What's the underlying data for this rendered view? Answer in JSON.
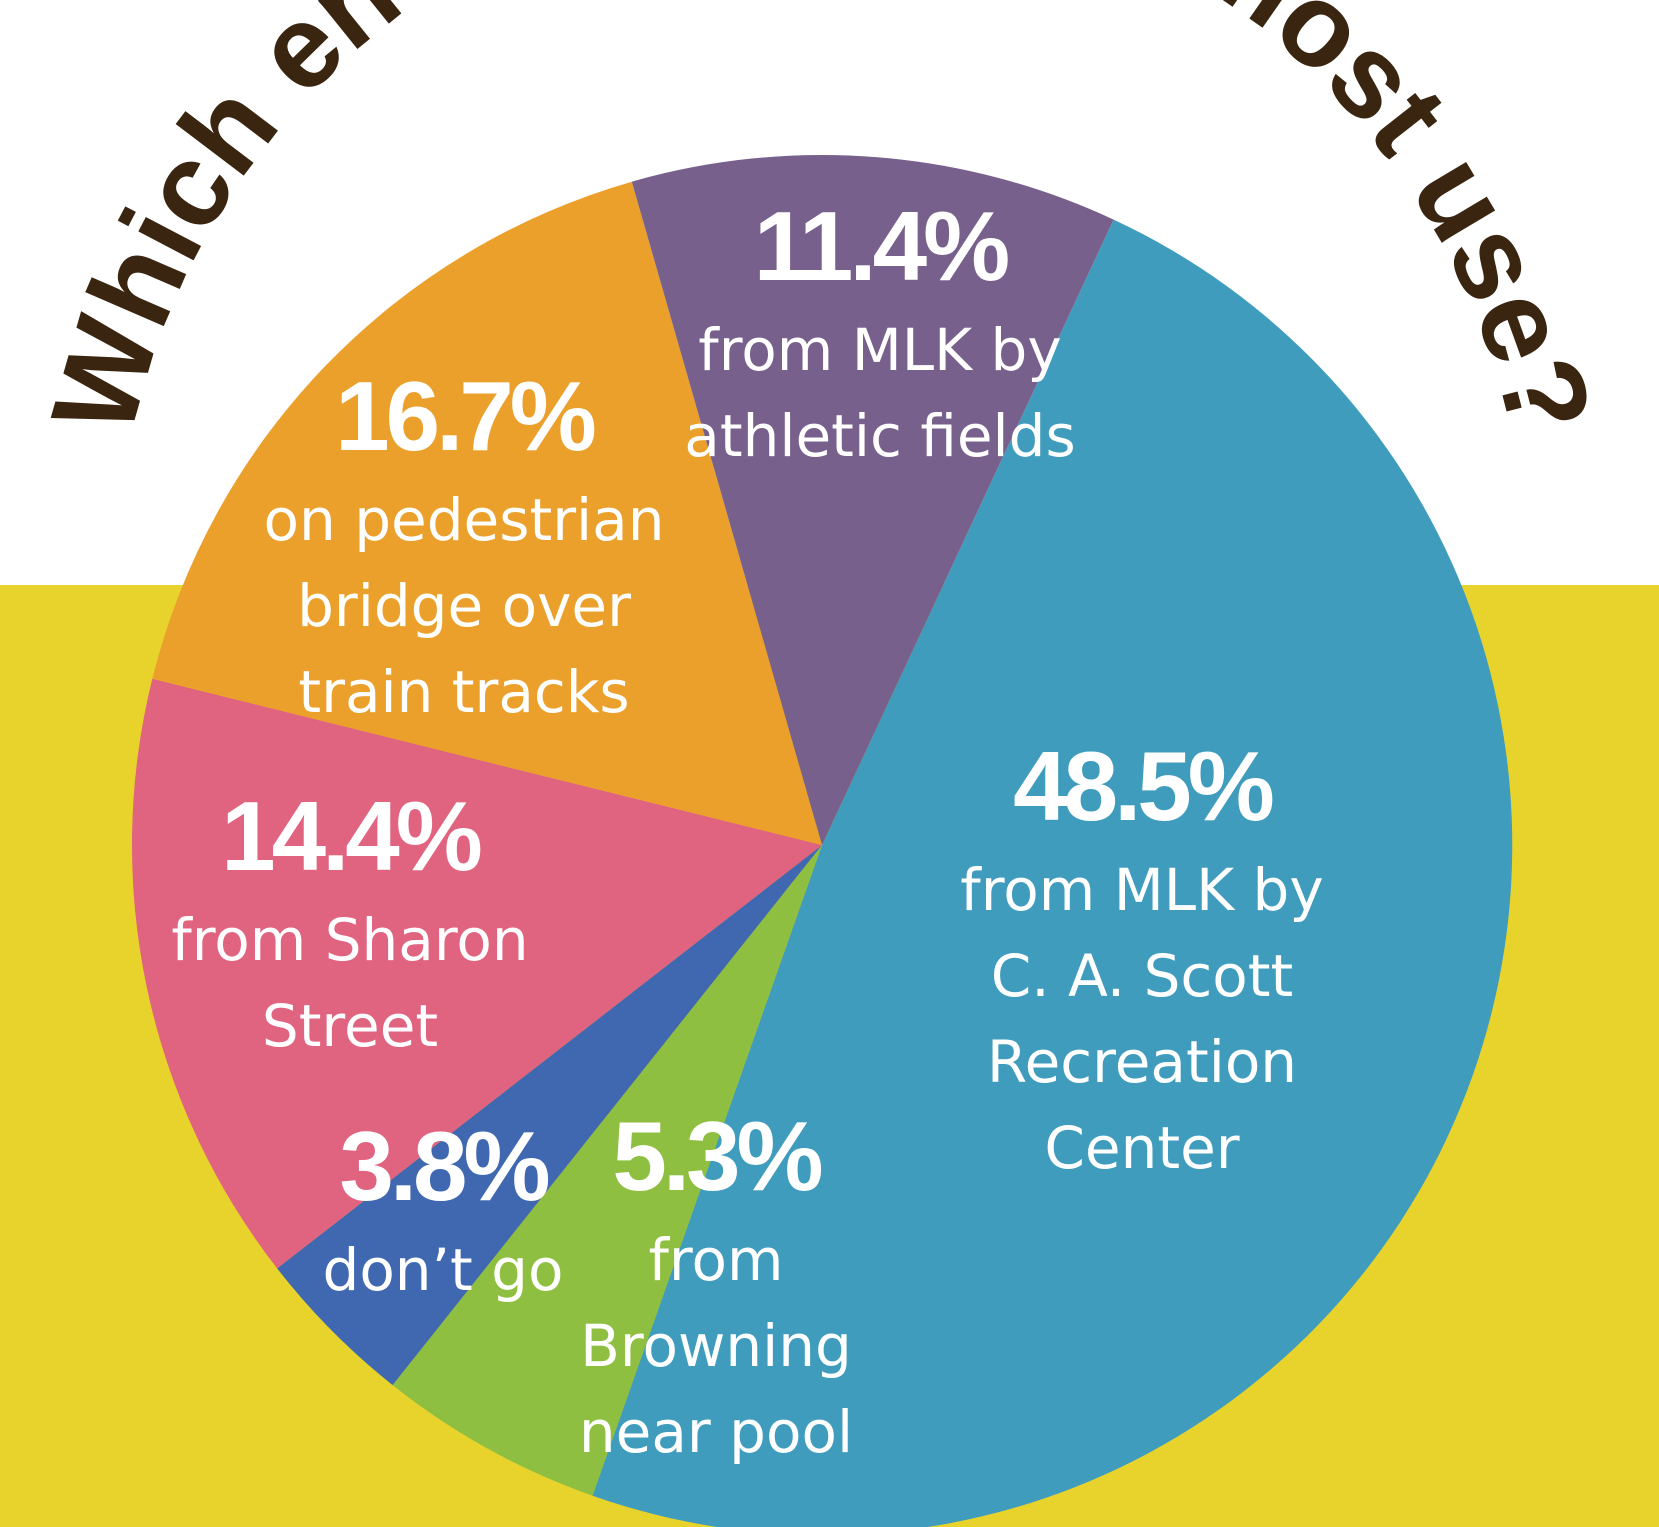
{
  "chart_data": {
    "type": "pie",
    "title": "Which entrances do we most use?",
    "slices": [
      {
        "pct_label": "48.5%",
        "value": 48.5,
        "lines": [
          "from MLK by",
          "C. A. Scott",
          "Recreation",
          "Center"
        ],
        "color": "#3f9cbd"
      },
      {
        "pct_label": "5.3%",
        "value": 5.3,
        "lines": [
          "from",
          "Browning",
          "near pool"
        ],
        "color": "#8fbf40"
      },
      {
        "pct_label": "3.8%",
        "value": 3.8,
        "lines": [
          "don’t go"
        ],
        "color": "#4068b0"
      },
      {
        "pct_label": "14.4%",
        "value": 14.4,
        "lines": [
          "from Sharon",
          "Street"
        ],
        "color": "#e06380"
      },
      {
        "pct_label": "16.7%",
        "value": 16.7,
        "lines": [
          "on pedestrian",
          "bridge over",
          "train tracks"
        ],
        "color": "#eba02c"
      },
      {
        "pct_label": "11.4%",
        "value": 11.4,
        "lines": [
          "from MLK by",
          "athletic fields"
        ],
        "color": "#78608c"
      }
    ]
  },
  "colors": {
    "background_top": "#ffffff",
    "background_bottom": "#e8d32d",
    "title": "#3a2510",
    "label": "#ffffff"
  }
}
